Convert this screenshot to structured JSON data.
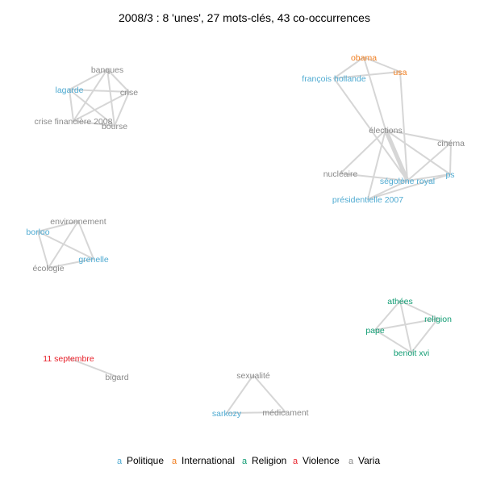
{
  "title": "2008/3 : 8 'unes', 27 mots-clés, 43 co-occurrences",
  "legend": {
    "key_glyph": "a",
    "items": [
      {
        "label": "Politique",
        "color": "#4eaad1"
      },
      {
        "label": "International",
        "color": "#f07d1e"
      },
      {
        "label": "Religion",
        "color": "#119c73"
      },
      {
        "label": "Violence",
        "color": "#e8202a"
      },
      {
        "label": "Varia",
        "color": "#8a8a8a"
      }
    ]
  },
  "nodes": [
    {
      "id": "banques",
      "label": "banques",
      "category": "Varia"
    },
    {
      "id": "lagarde",
      "label": "lagarde",
      "category": "Politique"
    },
    {
      "id": "crise",
      "label": "crise",
      "category": "Varia"
    },
    {
      "id": "crise2008",
      "label": "crise financière 2008",
      "category": "Varia"
    },
    {
      "id": "bourse",
      "label": "bourse",
      "category": "Varia"
    },
    {
      "id": "obama",
      "label": "obama",
      "category": "International"
    },
    {
      "id": "usa",
      "label": "usa",
      "category": "International"
    },
    {
      "id": "hollande",
      "label": "françois hollande",
      "category": "Politique"
    },
    {
      "id": "elections",
      "label": "élections",
      "category": "Varia"
    },
    {
      "id": "cinema",
      "label": "cinéma",
      "category": "Varia"
    },
    {
      "id": "nucleaire",
      "label": "nucléaire",
      "category": "Varia"
    },
    {
      "id": "royal",
      "label": "ségolène royal",
      "category": "Politique"
    },
    {
      "id": "ps",
      "label": "ps",
      "category": "Politique"
    },
    {
      "id": "pres2007",
      "label": "présidentielle 2007",
      "category": "Politique"
    },
    {
      "id": "environnement",
      "label": "environnement",
      "category": "Varia"
    },
    {
      "id": "borloo",
      "label": "borloo",
      "category": "Politique"
    },
    {
      "id": "grenelle",
      "label": "grenelle",
      "category": "Politique"
    },
    {
      "id": "ecologie",
      "label": "écologie",
      "category": "Varia"
    },
    {
      "id": "athees",
      "label": "athées",
      "category": "Religion"
    },
    {
      "id": "religion",
      "label": "religion",
      "category": "Religion"
    },
    {
      "id": "pape",
      "label": "pape",
      "category": "Religion"
    },
    {
      "id": "benoit",
      "label": "benoit xvi",
      "category": "Religion"
    },
    {
      "id": "sept11",
      "label": "11 septembre",
      "category": "Violence"
    },
    {
      "id": "bigard",
      "label": "bigard",
      "category": "Varia"
    },
    {
      "id": "sexualite",
      "label": "sexualité",
      "category": "Varia"
    },
    {
      "id": "sarkozy",
      "label": "sarkozy",
      "category": "Politique"
    },
    {
      "id": "medicament",
      "label": "médicament",
      "category": "Varia"
    }
  ],
  "edges": [
    {
      "source": "banques",
      "target": "lagarde",
      "weight": 1
    },
    {
      "source": "banques",
      "target": "crise",
      "weight": 1
    },
    {
      "source": "banques",
      "target": "crise2008",
      "weight": 1
    },
    {
      "source": "banques",
      "target": "bourse",
      "weight": 1
    },
    {
      "source": "lagarde",
      "target": "crise",
      "weight": 1
    },
    {
      "source": "lagarde",
      "target": "crise2008",
      "weight": 1
    },
    {
      "source": "lagarde",
      "target": "bourse",
      "weight": 1
    },
    {
      "source": "crise",
      "target": "crise2008",
      "weight": 1
    },
    {
      "source": "crise",
      "target": "bourse",
      "weight": 1
    },
    {
      "source": "crise2008",
      "target": "bourse",
      "weight": 1
    },
    {
      "source": "obama",
      "target": "usa",
      "weight": 1
    },
    {
      "source": "obama",
      "target": "hollande",
      "weight": 1
    },
    {
      "source": "obama",
      "target": "elections",
      "weight": 1
    },
    {
      "source": "hollande",
      "target": "usa",
      "weight": 1
    },
    {
      "source": "hollande",
      "target": "royal",
      "weight": 1
    },
    {
      "source": "usa",
      "target": "royal",
      "weight": 1
    },
    {
      "source": "elections",
      "target": "royal",
      "weight": 3
    },
    {
      "source": "elections",
      "target": "ps",
      "weight": 1
    },
    {
      "source": "elections",
      "target": "cinema",
      "weight": 1
    },
    {
      "source": "elections",
      "target": "nucleaire",
      "weight": 1
    },
    {
      "source": "elections",
      "target": "pres2007",
      "weight": 1
    },
    {
      "source": "cinema",
      "target": "ps",
      "weight": 1
    },
    {
      "source": "cinema",
      "target": "royal",
      "weight": 1
    },
    {
      "source": "royal",
      "target": "ps",
      "weight": 1
    },
    {
      "source": "royal",
      "target": "pres2007",
      "weight": 1
    },
    {
      "source": "nucleaire",
      "target": "royal",
      "weight": 1
    },
    {
      "source": "pres2007",
      "target": "ps",
      "weight": 1
    },
    {
      "source": "environnement",
      "target": "borloo",
      "weight": 1
    },
    {
      "source": "environnement",
      "target": "grenelle",
      "weight": 1
    },
    {
      "source": "environnement",
      "target": "ecologie",
      "weight": 1
    },
    {
      "source": "borloo",
      "target": "grenelle",
      "weight": 1
    },
    {
      "source": "borloo",
      "target": "ecologie",
      "weight": 1
    },
    {
      "source": "grenelle",
      "target": "ecologie",
      "weight": 1
    },
    {
      "source": "athees",
      "target": "religion",
      "weight": 1
    },
    {
      "source": "athees",
      "target": "pape",
      "weight": 1
    },
    {
      "source": "athees",
      "target": "benoit",
      "weight": 1
    },
    {
      "source": "religion",
      "target": "pape",
      "weight": 1
    },
    {
      "source": "religion",
      "target": "benoit",
      "weight": 1
    },
    {
      "source": "pape",
      "target": "benoit",
      "weight": 1
    },
    {
      "source": "sept11",
      "target": "bigard",
      "weight": 1
    },
    {
      "source": "sexualite",
      "target": "sarkozy",
      "weight": 1
    },
    {
      "source": "sexualite",
      "target": "medicament",
      "weight": 1
    },
    {
      "source": "sarkozy",
      "target": "medicament",
      "weight": 1
    }
  ]
}
